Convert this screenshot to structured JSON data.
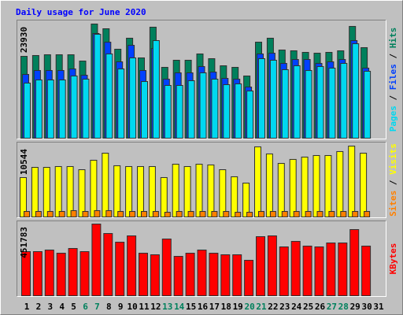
{
  "chart_data": [
    {
      "type": "bar",
      "title": "Daily usage for June 2020",
      "ylim": [
        0,
        23930
      ],
      "yticks": [
        23930
      ],
      "legend_separator": " / ",
      "series": [
        {
          "name": "Hits",
          "color": "#00805c",
          "values": [
            17160,
            17330,
            17490,
            17490,
            17490,
            16170,
            23930,
            22940,
            18650,
            20960,
            16830,
            23270,
            14850,
            16340,
            16340,
            17660,
            16670,
            15180,
            14850,
            13040,
            20130,
            20960,
            18480,
            18320,
            17990,
            17820,
            17990,
            18320,
            23430,
            18980,
            null
          ]
        },
        {
          "name": "Files",
          "color": "#0040ff",
          "values": [
            13370,
            14190,
            14190,
            14190,
            14520,
            13200,
            21950,
            20130,
            16010,
            19470,
            14190,
            18810,
            12380,
            13700,
            13700,
            15020,
            13860,
            12540,
            12380,
            10730,
            17660,
            17820,
            15680,
            16500,
            16500,
            15680,
            16010,
            16500,
            20460,
            14690,
            null
          ]
        },
        {
          "name": "Pages",
          "color": "#00d8f0",
          "values": [
            11550,
            12210,
            12210,
            12210,
            13040,
            12380,
            21780,
            17660,
            14520,
            16830,
            11880,
            20460,
            11060,
            11060,
            12050,
            13700,
            12380,
            11220,
            11390,
            9900,
            16670,
            16340,
            14360,
            15180,
            14190,
            15020,
            14690,
            15680,
            19800,
            14030,
            null
          ]
        }
      ]
    },
    {
      "type": "bar",
      "ylim": [
        0,
        10544
      ],
      "yticks": [
        10544
      ],
      "legend_separator": " / ",
      "series": [
        {
          "name": "Visits",
          "color": "#ffff00",
          "values": [
            5860,
            7380,
            7380,
            7500,
            7500,
            7030,
            8440,
            9490,
            7620,
            7500,
            7500,
            7500,
            5860,
            7850,
            7500,
            7850,
            7740,
            7030,
            5980,
            5040,
            10430,
            9380,
            7970,
            8560,
            8910,
            9140,
            9140,
            9730,
            10544,
            9490,
            null
          ]
        },
        {
          "name": "Sites",
          "color": "#ff8000",
          "values": [
            820,
            820,
            820,
            820,
            940,
            820,
            940,
            940,
            820,
            820,
            820,
            820,
            700,
            820,
            820,
            820,
            820,
            820,
            700,
            700,
            820,
            820,
            820,
            820,
            820,
            820,
            820,
            820,
            820,
            820,
            null
          ]
        }
      ]
    },
    {
      "type": "bar",
      "ylim": [
        0,
        451783
      ],
      "yticks": [
        451783
      ],
      "categories": [
        "1",
        "2",
        "3",
        "4",
        "5",
        "6",
        "7",
        "8",
        "9",
        "10",
        "11",
        "12",
        "13",
        "14",
        "15",
        "16",
        "17",
        "18",
        "19",
        "20",
        "21",
        "22",
        "23",
        "24",
        "25",
        "26",
        "27",
        "28",
        "29",
        "30",
        "31"
      ],
      "category_colors": [
        "#000000",
        "#000000",
        "#000000",
        "#000000",
        "#000000",
        "#00805c",
        "#00805c",
        "#000000",
        "#000000",
        "#000000",
        "#000000",
        "#000000",
        "#00805c",
        "#00805c",
        "#000000",
        "#000000",
        "#000000",
        "#000000",
        "#000000",
        "#00805c",
        "#00805c",
        "#000000",
        "#000000",
        "#000000",
        "#000000",
        "#000000",
        "#00805c",
        "#00805c",
        "#000000",
        "#000000",
        "#000000"
      ],
      "series": [
        {
          "name": "KBytes",
          "color": "#ff0000",
          "values": [
            278020,
            278020,
            287960,
            268100,
            297890,
            278020,
            451783,
            392200,
            337600,
            377300,
            268100,
            258200,
            357500,
            248200,
            268100,
            287960,
            268100,
            258200,
            258200,
            223400,
            372300,
            377300,
            307800,
            342600,
            312800,
            307800,
            332600,
            332600,
            417000,
            312800,
            null
          ]
        }
      ]
    }
  ]
}
